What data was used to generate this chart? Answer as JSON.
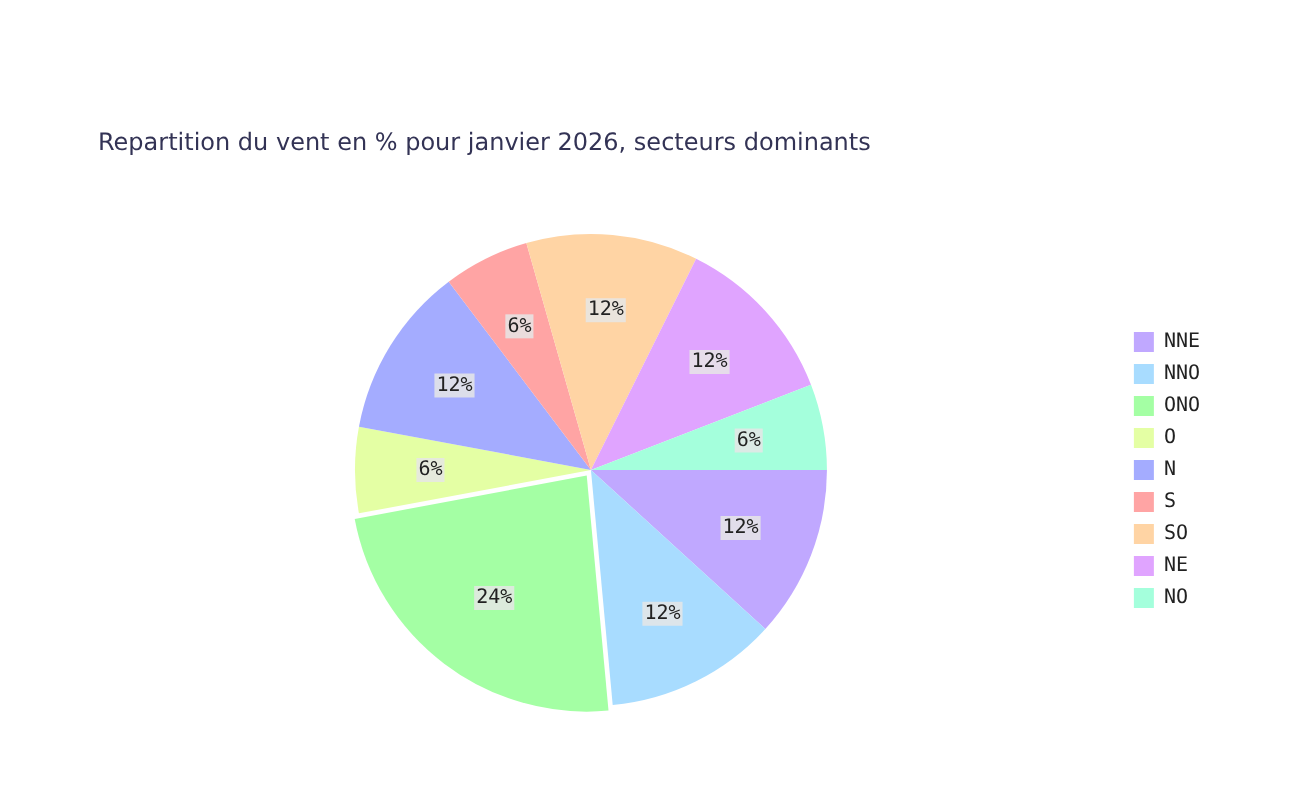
{
  "chart_data": {
    "type": "pie",
    "title": "Repartition du vent en % pour janvier 2026, secteurs dominants",
    "categories": [
      "NNE",
      "NNO",
      "ONO",
      "O",
      "N",
      "S",
      "SO",
      "NE",
      "NO"
    ],
    "values": [
      12,
      12,
      24,
      6,
      12,
      6,
      12,
      12,
      6
    ],
    "value_labels": [
      "12%",
      "12%",
      "24%",
      "6%",
      "12%",
      "6%",
      "12%",
      "12%",
      "6%"
    ],
    "colors": [
      "#c0a8ff",
      "#a8dcff",
      "#a4ffa4",
      "#e4ffa4",
      "#a4acff",
      "#ffa4a4",
      "#ffd4a4",
      "#e0a4ff",
      "#a4ffdc"
    ],
    "legend": "right"
  }
}
